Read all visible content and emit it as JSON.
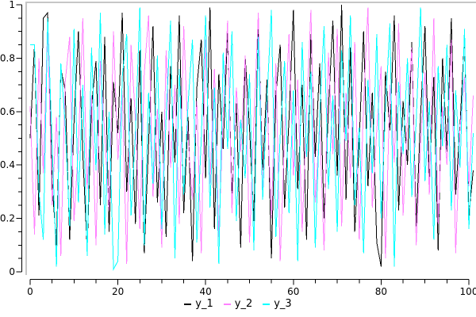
{
  "figure": {
    "background": "#ffffff",
    "border_color": "#c6c6c6",
    "axis_color": "#000000"
  },
  "chart_data": {
    "type": "line",
    "title": "",
    "xlabel": "",
    "ylabel": "",
    "grid": false,
    "legend_position": "bottom-center",
    "xlim": [
      0,
      100
    ],
    "ylim": [
      0,
      1
    ],
    "x_start": 0,
    "x_step": 1,
    "x_major_ticks": [
      0,
      20,
      40,
      60,
      80,
      100
    ],
    "x_tick_labels": [
      "0",
      "20",
      "40",
      "60",
      "80",
      "100"
    ],
    "x_minor_step": 5,
    "y_major_ticks": [
      0,
      0.2,
      0.4,
      0.6,
      0.8,
      1
    ],
    "y_tick_labels": [
      "0",
      "0.2",
      "0.4",
      "0.6",
      "0.8",
      "1"
    ],
    "y_minor_step": 0.05,
    "series": [
      {
        "name": "y_1",
        "color": "#000000",
        "values": [
          0.5,
          0.85,
          0.21,
          0.95,
          0.97,
          0.33,
          0.1,
          0.76,
          0.68,
          0.12,
          0.56,
          0.9,
          0.44,
          0.08,
          0.62,
          0.79,
          0.25,
          0.88,
          0.15,
          0.71,
          0.52,
          0.97,
          0.3,
          0.65,
          0.18,
          0.83,
          0.07,
          0.48,
          0.92,
          0.26,
          0.6,
          0.13,
          0.77,
          0.41,
          0.96,
          0.22,
          0.58,
          0.04,
          0.69,
          0.87,
          0.35,
          0.99,
          0.16,
          0.74,
          0.46,
          0.91,
          0.28,
          0.63,
          0.09,
          0.81,
          0.54,
          0.19,
          0.93,
          0.38,
          0.72,
          0.05,
          0.66,
          0.85,
          0.24,
          0.57,
          0.98,
          0.31,
          0.7,
          0.12,
          0.89,
          0.43,
          0.78,
          0.2,
          0.61,
          0.94,
          0.36,
          1.0,
          0.27,
          0.84,
          0.15,
          0.49,
          0.9,
          0.32,
          0.67,
          0.11,
          0.02,
          0.75,
          0.53,
          0.96,
          0.23,
          0.64,
          0.4,
          0.86,
          0.17,
          0.59,
          0.92,
          0.34,
          0.73,
          0.08,
          0.8,
          0.45,
          0.95,
          0.29,
          0.55,
          0.88,
          0.21,
          0.38
        ]
      },
      {
        "name": "y_2",
        "color": "#ff80ff",
        "values": [
          0.62,
          0.14,
          0.8,
          0.37,
          0.93,
          0.25,
          0.58,
          0.06,
          0.71,
          0.88,
          0.19,
          0.47,
          0.95,
          0.31,
          0.66,
          0.1,
          0.79,
          0.52,
          0.23,
          0.9,
          0.42,
          0.68,
          0.03,
          0.85,
          0.57,
          0.16,
          0.74,
          0.96,
          0.28,
          0.61,
          0.09,
          0.83,
          0.39,
          0.7,
          0.18,
          0.92,
          0.5,
          0.27,
          0.64,
          0.07,
          0.87,
          0.33,
          0.76,
          0.13,
          0.59,
          0.94,
          0.22,
          0.69,
          0.45,
          0.81,
          0.11,
          0.56,
          0.97,
          0.3,
          0.65,
          0.2,
          0.78,
          0.04,
          0.51,
          0.89,
          0.36,
          0.72,
          0.15,
          0.6,
          0.98,
          0.26,
          0.55,
          0.08,
          0.82,
          0.44,
          0.91,
          0.17,
          0.67,
          0.35,
          0.86,
          0.12,
          0.63,
          0.99,
          0.24,
          0.53,
          0.77,
          0.05,
          0.7,
          0.41,
          0.93,
          0.21,
          0.58,
          0.84,
          0.1,
          0.48,
          0.75,
          0.29,
          0.95,
          0.18,
          0.62,
          0.4,
          0.87,
          0.07,
          0.54,
          0.73,
          0.32,
          0.66
        ]
      },
      {
        "name": "y_3",
        "color": "#00ffff",
        "values": [
          0.85,
          0.85,
          0.3,
          0.12,
          0.95,
          0.48,
          0.02,
          0.78,
          0.55,
          0.17,
          0.91,
          0.26,
          0.7,
          0.06,
          0.84,
          0.38,
          0.97,
          0.14,
          0.6,
          0.01,
          0.04,
          0.73,
          0.89,
          0.21,
          0.52,
          0.99,
          0.1,
          0.67,
          0.33,
          0.81,
          0.16,
          0.58,
          0.94,
          0.05,
          0.76,
          0.29,
          0.63,
          0.87,
          0.11,
          0.5,
          0.96,
          0.24,
          0.69,
          0.03,
          0.82,
          0.46,
          0.9,
          0.19,
          0.57,
          0.35,
          0.74,
          0.08,
          0.88,
          0.27,
          0.65,
          0.98,
          0.13,
          0.51,
          0.79,
          0.22,
          0.68,
          0.04,
          0.86,
          0.43,
          0.75,
          0.09,
          0.59,
          0.92,
          0.31,
          0.66,
          0.15,
          0.83,
          0.49,
          0.96,
          0.25,
          0.54,
          0.07,
          0.72,
          0.37,
          0.89,
          0.2,
          0.61,
          0.93,
          0.02,
          0.71,
          0.44,
          0.8,
          0.28,
          0.56,
          0.99,
          0.34,
          0.64,
          0.12,
          0.77,
          0.47,
          0.85,
          0.23,
          0.68,
          0.39,
          0.91,
          0.16,
          0.52
        ]
      }
    ]
  },
  "legend": {
    "items": [
      {
        "label": "y_1",
        "color": "#000000"
      },
      {
        "label": "y_2",
        "color": "#ff80ff"
      },
      {
        "label": "y_3",
        "color": "#00ffff"
      }
    ]
  }
}
